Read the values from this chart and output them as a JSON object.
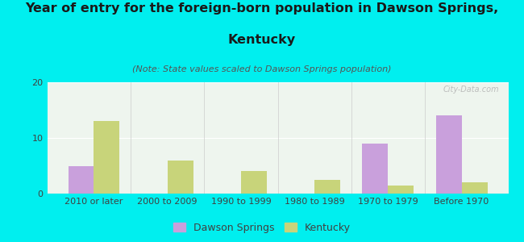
{
  "title_line1": "Year of entry for the foreign-born population in Dawson Springs,",
  "title_line2": "Kentucky",
  "subtitle": "(Note: State values scaled to Dawson Springs population)",
  "categories": [
    "2010 or later",
    "2000 to 2009",
    "1990 to 1999",
    "1980 to 1989",
    "1970 to 1979",
    "Before 1970"
  ],
  "dawson_springs": [
    5,
    0,
    0,
    0,
    9,
    14
  ],
  "kentucky": [
    13,
    6,
    4,
    2.5,
    1.5,
    2
  ],
  "ds_color": "#c9a0dc",
  "ky_color": "#c8d47a",
  "ylim": [
    0,
    20
  ],
  "yticks": [
    0,
    10,
    20
  ],
  "background_color": "#00efef",
  "plot_bg_color": "#eef5ee",
  "bar_width": 0.35,
  "title_fontsize": 11.5,
  "subtitle_fontsize": 8,
  "tick_fontsize": 8,
  "legend_fontsize": 9,
  "watermark": "City-Data.com"
}
